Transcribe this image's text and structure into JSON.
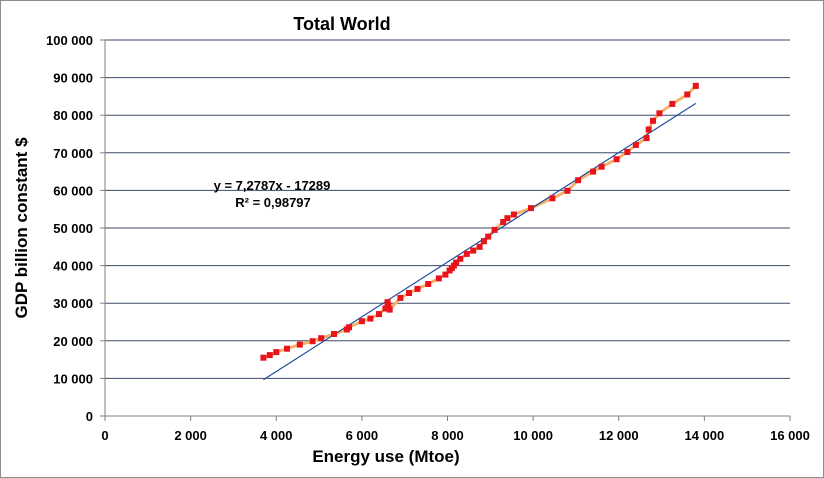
{
  "chart_data": {
    "type": "scatter",
    "title": "Total World",
    "xlabel": "Energy use (Mtoe)",
    "ylabel": "GDP billion constant $",
    "xlim": [
      0,
      16000
    ],
    "ylim": [
      0,
      100000
    ],
    "x_ticks": [
      0,
      2000,
      4000,
      6000,
      8000,
      10000,
      12000,
      14000,
      16000
    ],
    "y_ticks": [
      0,
      10000,
      20000,
      30000,
      40000,
      50000,
      60000,
      70000,
      80000,
      90000,
      100000
    ],
    "x_tick_labels": [
      "0",
      "2 000",
      "4 000",
      "6 000",
      "8 000",
      "10 000",
      "12 000",
      "14 000",
      "16 000"
    ],
    "y_tick_labels": [
      "0",
      "10 000",
      "20 000",
      "30 000",
      "40 000",
      "50 000",
      "60 000",
      "70 000",
      "80 000",
      "90 000",
      "100 000"
    ],
    "grid": "horizontal",
    "colors": {
      "points": "#e8141c",
      "connector": "#f5b06b",
      "trendline": "#1f4e9c",
      "grid": "#3d4a6b"
    },
    "series": [
      {
        "x": [
          3700,
          3850,
          4000,
          4250,
          4550,
          4850,
          5050,
          5350,
          5650,
          5700,
          6000,
          6200,
          6400,
          6550,
          6600,
          6600,
          6620,
          6650,
          6900,
          7100,
          7300,
          7550,
          7800,
          7950,
          8050,
          8100,
          8150,
          8200,
          8300,
          8450,
          8600,
          8750,
          8850,
          8950,
          9100,
          9300,
          9400,
          9550,
          9950,
          10450,
          10800,
          11050,
          11400,
          11600,
          11950,
          12200,
          12400,
          12650,
          12700,
          12800,
          12950,
          13250,
          13600,
          13800
        ],
        "y": [
          15500,
          16200,
          17000,
          17900,
          19000,
          19900,
          20700,
          21800,
          23000,
          23600,
          25200,
          25900,
          27100,
          28600,
          29800,
          30300,
          29400,
          28300,
          31400,
          32700,
          33800,
          35100,
          36600,
          37600,
          38700,
          39300,
          40000,
          40800,
          41800,
          43100,
          44000,
          45000,
          46500,
          47700,
          49500,
          51600,
          52600,
          53600,
          55300,
          57900,
          59900,
          62700,
          65000,
          66300,
          68300,
          70200,
          72100,
          73900,
          76200,
          78500,
          80500,
          83000,
          85500,
          87800
        ]
      }
    ],
    "trendline": {
      "equation_label": "y = 7,2787x - 17289",
      "r2_label": "R² = 0,98797",
      "slope": 7.2787,
      "intercept": -17289,
      "x_range": [
        3700,
        13800
      ]
    }
  }
}
